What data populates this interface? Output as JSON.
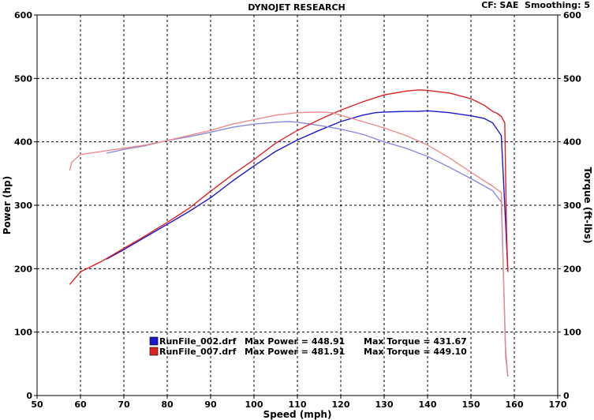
{
  "header": {
    "title": "DYNOJET RESEARCH",
    "correction": "CF: SAE  Smoothing: 5"
  },
  "chart_data": {
    "type": "line",
    "title": "DYNOJET RESEARCH",
    "xlabel": "Speed (mph)",
    "ylabel_left": "Power (hp)",
    "ylabel_right": "Torque (ft-lbs)",
    "xlim": [
      50,
      170
    ],
    "ylim": [
      0,
      600
    ],
    "x_ticks": [
      50,
      60,
      70,
      80,
      90,
      100,
      110,
      120,
      130,
      140,
      150,
      160,
      170
    ],
    "y_ticks": [
      0,
      100,
      200,
      300,
      400,
      500,
      600
    ],
    "grid": true,
    "colors": {
      "run_002_power": "#1a1acc",
      "run_002_torque": "#8a8ae0",
      "run_007_power": "#dd2222",
      "run_007_torque": "#ee8a8a"
    },
    "series": [
      {
        "name": "RunFile_002.drf",
        "measure": "power",
        "points": [
          [
            66,
            215
          ],
          [
            70,
            230
          ],
          [
            75,
            250
          ],
          [
            80,
            270
          ],
          [
            85,
            290
          ],
          [
            90,
            312
          ],
          [
            95,
            338
          ],
          [
            100,
            362
          ],
          [
            105,
            385
          ],
          [
            110,
            403
          ],
          [
            115,
            418
          ],
          [
            120,
            432
          ],
          [
            125,
            442
          ],
          [
            128,
            446
          ],
          [
            130,
            447
          ],
          [
            135,
            448
          ],
          [
            138,
            448
          ],
          [
            140,
            449
          ],
          [
            145,
            446
          ],
          [
            150,
            441
          ],
          [
            153,
            437
          ],
          [
            155,
            430
          ],
          [
            156,
            420
          ],
          [
            157,
            410
          ],
          [
            158,
            270
          ],
          [
            158.5,
            195
          ]
        ]
      },
      {
        "name": "RunFile_002.drf",
        "measure": "torque",
        "points": [
          [
            66,
            382
          ],
          [
            70,
            388
          ],
          [
            75,
            394
          ],
          [
            80,
            402
          ],
          [
            85,
            408
          ],
          [
            90,
            415
          ],
          [
            95,
            423
          ],
          [
            100,
            428
          ],
          [
            105,
            431
          ],
          [
            108,
            432
          ],
          [
            110,
            431
          ],
          [
            115,
            426
          ],
          [
            120,
            420
          ],
          [
            125,
            412
          ],
          [
            130,
            400
          ],
          [
            135,
            390
          ],
          [
            140,
            377
          ],
          [
            145,
            360
          ],
          [
            150,
            342
          ],
          [
            155,
            323
          ],
          [
            157,
            305
          ],
          [
            158,
            70
          ],
          [
            158.5,
            30
          ]
        ]
      },
      {
        "name": "RunFile_007.drf",
        "measure": "power",
        "points": [
          [
            57.5,
            175
          ],
          [
            60,
            195
          ],
          [
            65,
            212
          ],
          [
            70,
            232
          ],
          [
            75,
            252
          ],
          [
            80,
            273
          ],
          [
            85,
            295
          ],
          [
            90,
            322
          ],
          [
            95,
            348
          ],
          [
            100,
            372
          ],
          [
            105,
            398
          ],
          [
            110,
            418
          ],
          [
            115,
            435
          ],
          [
            120,
            450
          ],
          [
            125,
            463
          ],
          [
            130,
            474
          ],
          [
            135,
            480
          ],
          [
            138,
            482
          ],
          [
            140,
            481
          ],
          [
            145,
            477
          ],
          [
            150,
            468
          ],
          [
            153,
            458
          ],
          [
            155,
            448
          ],
          [
            156,
            445
          ],
          [
            157,
            440
          ],
          [
            157.8,
            430
          ],
          [
            158.2,
            260
          ],
          [
            158.5,
            195
          ]
        ]
      },
      {
        "name": "RunFile_007.drf",
        "measure": "torque",
        "points": [
          [
            57.5,
            355
          ],
          [
            58,
            368
          ],
          [
            60,
            380
          ],
          [
            65,
            385
          ],
          [
            70,
            390
          ],
          [
            75,
            395
          ],
          [
            80,
            402
          ],
          [
            85,
            410
          ],
          [
            90,
            418
          ],
          [
            95,
            428
          ],
          [
            100,
            435
          ],
          [
            105,
            442
          ],
          [
            110,
            446
          ],
          [
            115,
            447
          ],
          [
            118,
            446
          ],
          [
            120,
            442
          ],
          [
            125,
            432
          ],
          [
            130,
            422
          ],
          [
            135,
            410
          ],
          [
            140,
            395
          ],
          [
            145,
            375
          ],
          [
            150,
            352
          ],
          [
            155,
            330
          ],
          [
            157,
            320
          ],
          [
            158,
            60
          ],
          [
            158.5,
            30
          ]
        ]
      }
    ]
  },
  "legend": [
    {
      "file": "RunFile_002.drf",
      "power_text": "Max Power = 448.91",
      "torque_text": "Max Torque = 431.67",
      "color": "#1a1acc"
    },
    {
      "file": "RunFile_007.drf",
      "power_text": "Max Power = 481.91",
      "torque_text": "Max Torque = 449.10",
      "color": "#dd2222"
    }
  ]
}
